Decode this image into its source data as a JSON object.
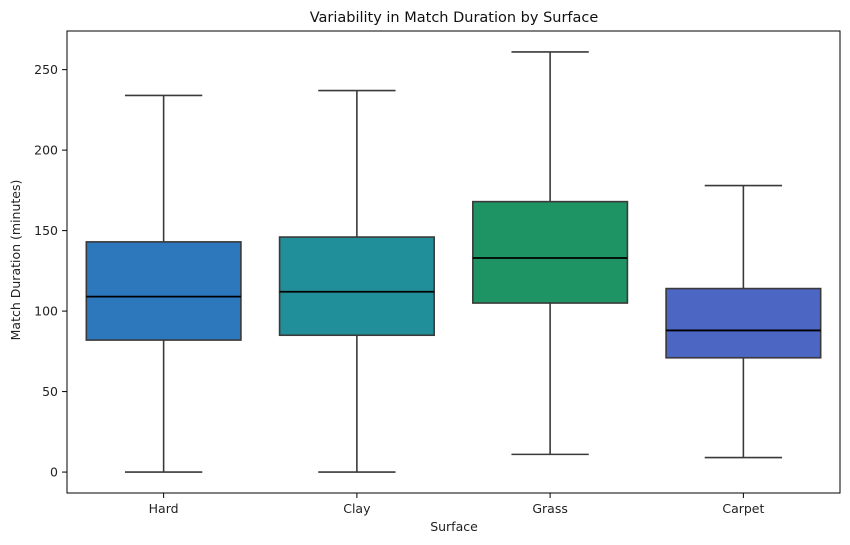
{
  "chart_data": {
    "type": "box",
    "title": "Variability in Match Duration by Surface",
    "xlabel": "Surface",
    "ylabel": "Match Duration (minutes)",
    "ylim": [
      -13,
      274
    ],
    "yticks": [
      0,
      50,
      100,
      150,
      200,
      250
    ],
    "grid": false,
    "categories": [
      "Hard",
      "Clay",
      "Grass",
      "Carpet"
    ],
    "series": [
      {
        "category": "Hard",
        "whisker_low": 0,
        "q1": 82,
        "median": 109,
        "q3": 143,
        "whisker_high": 234,
        "color": "#2d77bc"
      },
      {
        "category": "Clay",
        "whisker_low": 0,
        "q1": 85,
        "median": 112,
        "q3": 146,
        "whisker_high": 237,
        "color": "#208f99"
      },
      {
        "category": "Grass",
        "whisker_low": 11,
        "q1": 105,
        "median": 133,
        "q3": 168,
        "whisker_high": 261,
        "color": "#1e9364"
      },
      {
        "category": "Carpet",
        "whisker_low": 9,
        "q1": 71,
        "median": 88,
        "q3": 114,
        "whisker_high": 178,
        "color": "#4c66c4"
      }
    ]
  }
}
